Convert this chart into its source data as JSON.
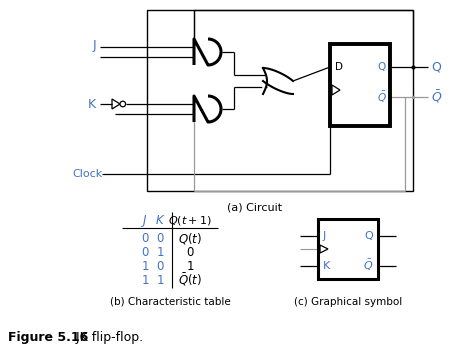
{
  "title_bold": "Figure 5.16",
  "title_normal": "    JK flip-flop.",
  "label_a": "(a) Circuit",
  "label_b": "(b) Characteristic table",
  "label_c": "(c) Graphical symbol",
  "bg_color": "#ffffff",
  "blue": "#4472c4",
  "black": "#000000",
  "gray": "#999999"
}
